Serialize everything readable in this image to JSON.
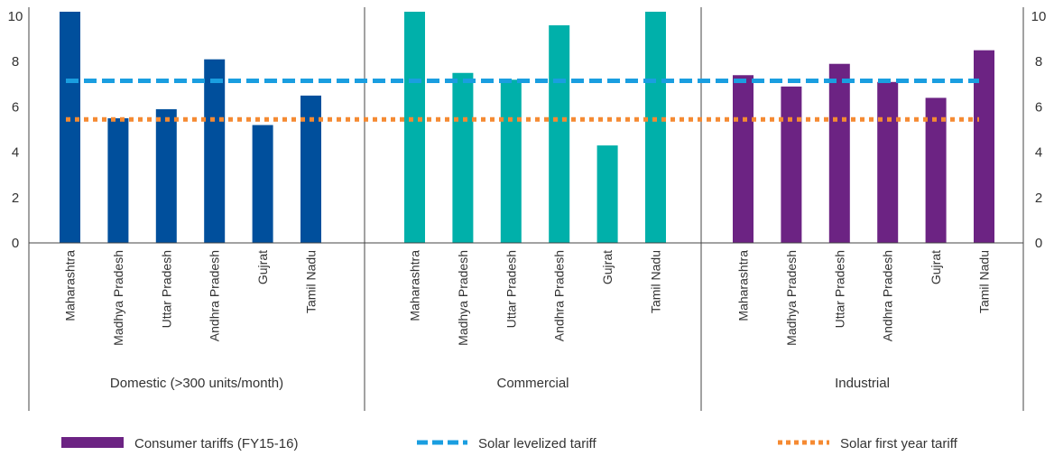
{
  "chart_data": {
    "type": "bar",
    "ylim": [
      0,
      10
    ],
    "y_ticks": [
      "0",
      "2",
      "4",
      "6",
      "8",
      "10"
    ],
    "groups": [
      {
        "name": "Domestic (>300 units/month)",
        "color": "#004f9c",
        "categories": [
          "Maharashtra",
          "Madhya Pradesh",
          "Uttar Pradesh",
          "Andhra Pradesh",
          "Gujrat",
          "Tamil Nadu"
        ],
        "values": [
          10.2,
          5.5,
          5.9,
          8.1,
          5.2,
          6.5
        ]
      },
      {
        "name": "Commercial",
        "color": "#00b0aa",
        "categories": [
          "Maharashtra",
          "Madhya Pradesh",
          "Uttar Pradesh",
          "Andhra Pradesh",
          "Gujrat",
          "Tamil Nadu"
        ],
        "values": [
          10.2,
          7.5,
          7.2,
          9.6,
          4.3,
          10.2
        ]
      },
      {
        "name": "Industrial",
        "color": "#6c2383",
        "categories": [
          "Maharashtra",
          "Madhya Pradesh",
          "Uttar Pradesh",
          "Andhra Pradesh",
          "Gujrat",
          "Tamil Nadu"
        ],
        "values": [
          7.4,
          6.9,
          7.9,
          7.1,
          6.4,
          8.5
        ]
      }
    ],
    "reference_lines": [
      {
        "name": "Solar levelized tariff",
        "value": 7.15,
        "color": "#1a9ee0",
        "style": "dashed"
      },
      {
        "name": "Solar first year tariff",
        "value": 5.45,
        "color": "#f58a32",
        "style": "dotted"
      }
    ],
    "legend": {
      "placement": "bottom",
      "items": [
        {
          "label": "Consumer tariffs (FY15-16)",
          "color": "#6c2383",
          "kind": "bar"
        },
        {
          "label": "Solar levelized tariff",
          "color": "#1a9ee0",
          "kind": "dashed"
        },
        {
          "label": "Solar first year tariff",
          "color": "#f58a32",
          "kind": "dotted"
        }
      ]
    }
  }
}
